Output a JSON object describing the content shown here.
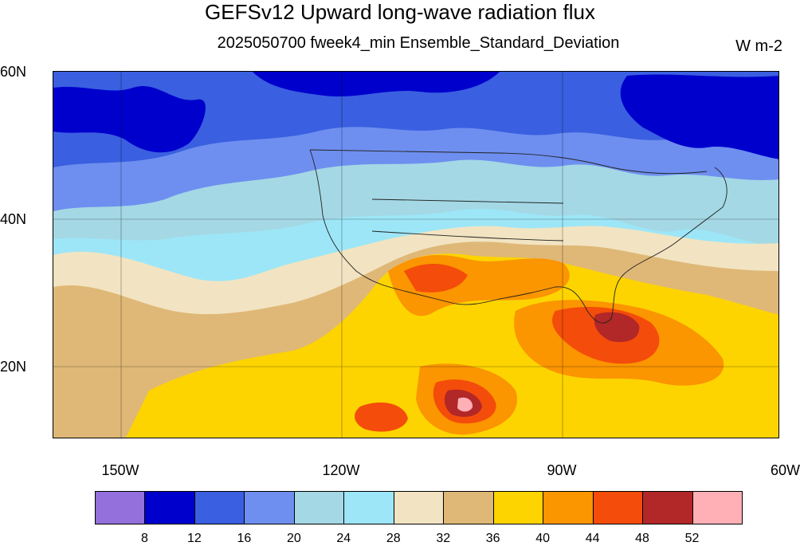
{
  "title": "GEFSv12 Upward long-wave radiation flux",
  "subtitle": "2025050700 fweek4_min Ensemble_Standard_Deviation",
  "units": "W m-2",
  "lat_labels": [
    "60N",
    "40N",
    "20N"
  ],
  "lon_labels": [
    "150W",
    "120W",
    "90W",
    "60W"
  ],
  "colorbar": {
    "labels": [
      "8",
      "12",
      "16",
      "20",
      "24",
      "28",
      "32",
      "36",
      "40",
      "44",
      "48",
      "52"
    ],
    "colors": [
      "#9370db",
      "#0000cd",
      "#3a5fe0",
      "#6e8ff0",
      "#a4d8e5",
      "#9de6f7",
      "#f2e4c2",
      "#dfb877",
      "#fdd400",
      "#fb9500",
      "#f44c0a",
      "#b22727",
      "#ffb0b6"
    ]
  }
}
